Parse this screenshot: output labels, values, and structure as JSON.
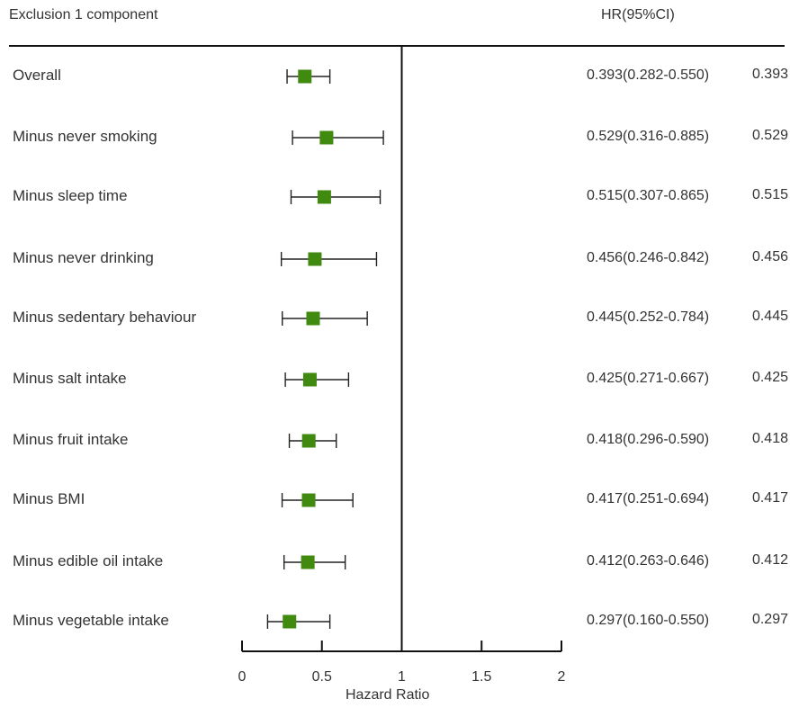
{
  "header": {
    "left": "Exclusion 1 component",
    "right": "HR(95%CI)"
  },
  "chart_data": {
    "type": "forest",
    "xlabel": "Hazard Ratio",
    "xlim": [
      0,
      2
    ],
    "xticks": [
      0,
      0.5,
      1,
      1.5,
      2
    ],
    "xtick_labels": [
      "0",
      "0.5",
      "1",
      "1.5",
      "2"
    ],
    "reference_line": 1,
    "marker_color": "#3f8a0f",
    "rows": [
      {
        "label": "Overall",
        "hr": 0.393,
        "lo": 0.282,
        "hi": 0.55,
        "hr_text": "0.393(0.282-0.550)",
        "value_text": "0.393"
      },
      {
        "label": "Minus never smoking",
        "hr": 0.529,
        "lo": 0.316,
        "hi": 0.885,
        "hr_text": "0.529(0.316-0.885)",
        "value_text": "0.529"
      },
      {
        "label": "Minus sleep time",
        "hr": 0.515,
        "lo": 0.307,
        "hi": 0.865,
        "hr_text": "0.515(0.307-0.865)",
        "value_text": "0.515"
      },
      {
        "label": "Minus never drinking",
        "hr": 0.456,
        "lo": 0.246,
        "hi": 0.842,
        "hr_text": "0.456(0.246-0.842)",
        "value_text": "0.456"
      },
      {
        "label": "Minus sedentary behaviour",
        "hr": 0.445,
        "lo": 0.252,
        "hi": 0.784,
        "hr_text": "0.445(0.252-0.784)",
        "value_text": "0.445"
      },
      {
        "label": "Minus salt intake",
        "hr": 0.425,
        "lo": 0.271,
        "hi": 0.667,
        "hr_text": "0.425(0.271-0.667)",
        "value_text": "0.425"
      },
      {
        "label": "Minus fruit intake",
        "hr": 0.418,
        "lo": 0.296,
        "hi": 0.59,
        "hr_text": "0.418(0.296-0.590)",
        "value_text": "0.418"
      },
      {
        "label": "Minus BMI",
        "hr": 0.417,
        "lo": 0.251,
        "hi": 0.694,
        "hr_text": "0.417(0.251-0.694)",
        "value_text": "0.417"
      },
      {
        "label": "Minus edible oil intake",
        "hr": 0.412,
        "lo": 0.263,
        "hi": 0.646,
        "hr_text": "0.412(0.263-0.646)",
        "value_text": "0.412"
      },
      {
        "label": "Minus vegetable intake",
        "hr": 0.297,
        "lo": 0.16,
        "hi": 0.55,
        "hr_text": "0.297(0.160-0.550)",
        "value_text": "0.297"
      }
    ]
  }
}
